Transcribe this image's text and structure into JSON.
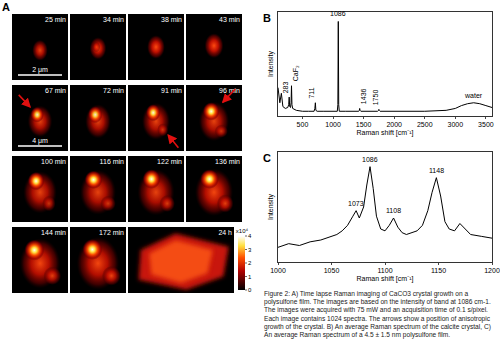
{
  "figure": {
    "panel_a": {
      "title": "A",
      "frames": [
        "25 min",
        "34 min",
        "38 min",
        "43 min",
        "67 min",
        "72 min",
        "91 min",
        "96 min",
        "100 min",
        "116 min",
        "122 min",
        "136 min",
        "144 min",
        "172 min",
        "24 h"
      ],
      "scale_bars": [
        "2 μm",
        "4 μm"
      ],
      "colorbar": {
        "range": [
          0,
          4
        ],
        "ticks": [
          0,
          1,
          2,
          3,
          4
        ],
        "label": "x10⁴"
      }
    },
    "caption": "Figure 2: A) Time lapse Raman imaging of CaCO3 crystal growth on a polysulfone film. The images are based on the intensity of band at 1086 cm-1. The images were acquired with 75 mW and an acquisition time of 0.1 s/pixel. Each image contains 1024 spectra. The arrows show a position of anisotropic growth of the crystal.  B) An average Raman spectrum of the  calcite crystal, C) An average Raman spectrum of a 4.5 ± 1.5 nm polysulfone  film."
  },
  "chart_data": [
    {
      "type": "line",
      "title": "B",
      "xlabel": "Raman shift [cm⁻¹]",
      "ylabel": "Intensity",
      "color": "#000000",
      "x": [
        100,
        130,
        155,
        180,
        220,
        260,
        275,
        283,
        291,
        305,
        314,
        321,
        328,
        340,
        400,
        500,
        600,
        690,
        703,
        711,
        719,
        740,
        850,
        1000,
        1070,
        1079,
        1086,
        1093,
        1102,
        1200,
        1350,
        1420,
        1430,
        1436,
        1442,
        1455,
        1600,
        1730,
        1745,
        1750,
        1755,
        1770,
        2000,
        2500,
        2850,
        3000,
        3100,
        3200,
        3300,
        3400,
        3500,
        3600
      ],
      "values": [
        30,
        14,
        24,
        10,
        8,
        9,
        12,
        20,
        10,
        9,
        14,
        32,
        12,
        8,
        6,
        5,
        5,
        5,
        8,
        14,
        6,
        5,
        5,
        5,
        5,
        12,
        100,
        12,
        5,
        5,
        5,
        5,
        6,
        8,
        6,
        5,
        5,
        5,
        6,
        7,
        6,
        5,
        5,
        5,
        6,
        8,
        11,
        13,
        14,
        13,
        11,
        9
      ],
      "xlim": [
        100,
        3600
      ],
      "xticks": [
        500,
        1000,
        1500,
        2000,
        2500,
        3000,
        3500
      ],
      "ylim": [
        0,
        110
      ],
      "tick_labels": "x",
      "annotations": [
        {
          "text": "283",
          "x": 283,
          "y": 20
        },
        {
          "text": "CaF₂",
          "x": 321,
          "y": 32
        },
        {
          "text": "711",
          "x": 711,
          "y": 14
        },
        {
          "text": "1086",
          "x": 1086,
          "y": 100
        },
        {
          "text": "1436",
          "x": 1436,
          "y": 8
        },
        {
          "text": "1750",
          "x": 1750,
          "y": 7
        },
        {
          "text": "water",
          "x": 3300,
          "y": 14
        }
      ]
    },
    {
      "type": "line",
      "title": "C",
      "xlabel": "Raman shift [cm⁻¹]",
      "ylabel": "Intensity",
      "color": "#000000",
      "x": [
        1000,
        1010,
        1020,
        1030,
        1040,
        1050,
        1055,
        1060,
        1065,
        1070,
        1073,
        1076,
        1080,
        1083,
        1086,
        1089,
        1092,
        1096,
        1100,
        1104,
        1108,
        1112,
        1116,
        1120,
        1125,
        1130,
        1135,
        1140,
        1144,
        1148,
        1152,
        1156,
        1160,
        1165,
        1170,
        1175,
        1180,
        1190,
        1200
      ],
      "values": [
        18,
        20,
        19,
        21,
        22,
        24,
        25,
        27,
        30,
        35,
        38,
        34,
        40,
        52,
        62,
        50,
        35,
        28,
        27,
        30,
        34,
        29,
        26,
        25,
        26,
        27,
        30,
        38,
        48,
        56,
        46,
        32,
        28,
        27,
        31,
        28,
        25,
        24,
        23
      ],
      "xlim": [
        1000,
        1200
      ],
      "xticks": [
        1000,
        1050,
        1100,
        1150,
        1200
      ],
      "ylim": [
        10,
        70
      ],
      "tick_labels": "x",
      "annotations": [
        {
          "text": "1073",
          "x": 1073,
          "y": 38
        },
        {
          "text": "1086",
          "x": 1086,
          "y": 62
        },
        {
          "text": "1108",
          "x": 1108,
          "y": 34
        },
        {
          "text": "1148",
          "x": 1148,
          "y": 56
        }
      ]
    }
  ]
}
